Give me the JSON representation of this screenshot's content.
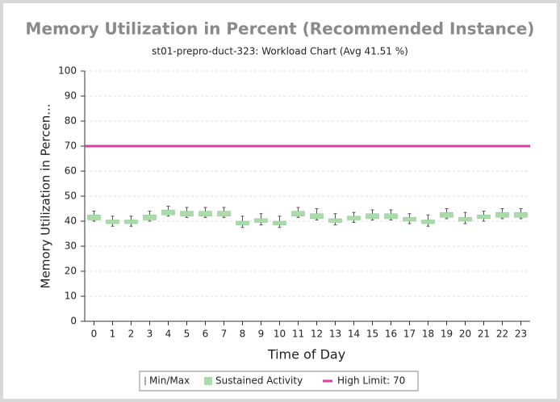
{
  "chart_data": {
    "type": "box",
    "title": "Memory Utilization in Percent (Recommended Instance)",
    "subtitle": "st01-prepro-duct-323: Workload Chart (Avg 41.51 %)",
    "xlabel": "Time of Day",
    "ylabel": "Memory Utilization in Percen...",
    "categories": [
      "0",
      "1",
      "2",
      "3",
      "4",
      "5",
      "6",
      "7",
      "8",
      "9",
      "10",
      "11",
      "12",
      "13",
      "14",
      "15",
      "16",
      "17",
      "18",
      "19",
      "20",
      "21",
      "22",
      "23"
    ],
    "series": [
      {
        "name": "Min/Max",
        "color": "#555555",
        "min": [
          40,
          38,
          38,
          40,
          42,
          41.5,
          41.5,
          41.5,
          37.5,
          38.5,
          37.5,
          41.5,
          40.5,
          38.5,
          39.5,
          40.5,
          40.5,
          39,
          38,
          41,
          39,
          40,
          41,
          41
        ],
        "max": [
          44,
          42,
          42,
          44,
          46,
          45.5,
          45.5,
          45.5,
          42,
          43,
          42,
          45.5,
          45,
          43,
          43.5,
          44.5,
          44.5,
          43,
          42.5,
          45,
          43.5,
          44,
          45,
          45
        ]
      },
      {
        "name": "Sustained Activity",
        "color": "#a9dca9",
        "low": [
          40.5,
          39,
          39,
          40.5,
          42.5,
          42,
          42,
          42,
          38.5,
          39.5,
          38.5,
          42,
          41,
          39.5,
          40.5,
          41,
          41,
          40,
          39,
          41.5,
          40,
          41,
          41.5,
          41.5
        ],
        "high": [
          42.5,
          40.5,
          40.5,
          42.5,
          44.5,
          44,
          44,
          44,
          40,
          41,
          40,
          44,
          43,
          41,
          42,
          43,
          43,
          41.5,
          40.5,
          43.5,
          41.5,
          42.5,
          43.5,
          43.5
        ]
      }
    ],
    "limit": {
      "name": "High Limit: 70",
      "value": 70,
      "color": "#d6409f"
    },
    "ylim": [
      0,
      100
    ],
    "yticks": [
      0,
      10,
      20,
      30,
      40,
      50,
      60,
      70,
      80,
      90,
      100
    ],
    "grid": true
  }
}
